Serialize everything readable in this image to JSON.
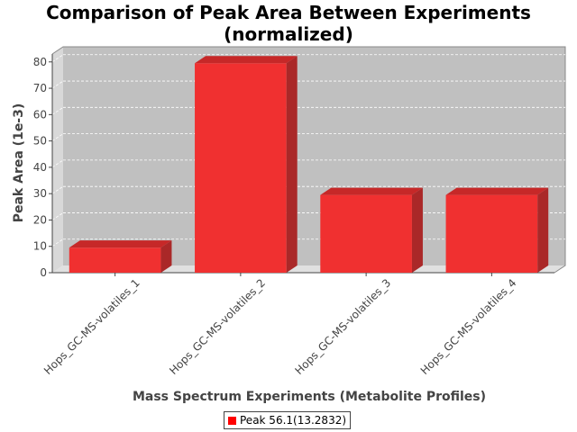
{
  "chart_data": {
    "type": "bar",
    "title_line1": "Comparison of Peak Area Between Experiments",
    "title_line2": "(normalized)",
    "xlabel": "Mass Spectrum Experiments (Metabolite Profiles)",
    "ylabel": "Peak Area (1e-3)",
    "categories": [
      "Hops_GC-MS-volatiles_1",
      "Hops_GC-MS-volatiles_2",
      "Hops_GC-MS-volatiles_3",
      "Hops_GC-MS-volatiles_4"
    ],
    "series": [
      {
        "name": "Peak 56.1(13.2832)",
        "values": [
          9.5,
          79.5,
          29.5,
          29.5
        ]
      }
    ],
    "ylim": [
      0,
      83
    ],
    "yticks": [
      0,
      10,
      20,
      30,
      40,
      50,
      60,
      70,
      80
    ],
    "grid": true,
    "legend_position": "bottom",
    "colors": {
      "bar_front": "#f03030",
      "bar_top": "#c62828",
      "bar_side": "#aa2828",
      "plot_background": "#c0c0c0",
      "floor": "#e0e0e0",
      "gridline": "#ffffff"
    }
  }
}
